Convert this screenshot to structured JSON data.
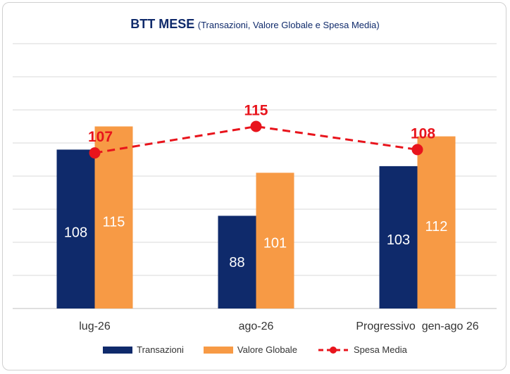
{
  "chart_data": {
    "type": "bar",
    "title": "BTT MESE",
    "subtitle": "(Transazioni, Valore Globale e Spesa Media)",
    "categories": [
      "lug-26",
      "ago-26",
      "Progressivo  gen-ago 26"
    ],
    "series": [
      {
        "name": "Transazioni",
        "type": "bar",
        "color": "#0f2a6b",
        "values": [
          108,
          88,
          103
        ]
      },
      {
        "name": "Valore Globale",
        "type": "bar",
        "color": "#f79a45",
        "values": [
          115,
          101,
          112
        ]
      },
      {
        "name": "Spesa Media",
        "type": "line",
        "color": "#e8141c",
        "style": "dashed",
        "values": [
          107,
          115,
          108
        ]
      }
    ],
    "ylim": [
      60,
      140
    ],
    "grid": true,
    "legend": "bottom"
  }
}
